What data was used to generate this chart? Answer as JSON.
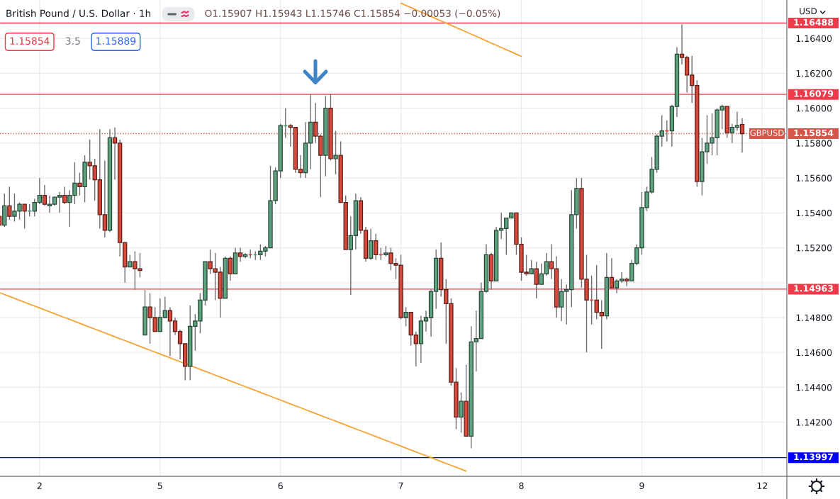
{
  "chart_data": {
    "type": "candlestick",
    "title": "British Pound / U.S. Dollar · 1h",
    "ylabel": "USD",
    "categories": [
      null,
      null,
      null,
      null,
      null,
      null,
      null,
      null,
      "2",
      null,
      null,
      null,
      null,
      null,
      null,
      null,
      null,
      null,
      null,
      null,
      null,
      null,
      null,
      null,
      null,
      null,
      null,
      null,
      null,
      null,
      null,
      null,
      "5",
      null,
      null,
      null,
      null,
      null,
      null,
      null,
      null,
      null,
      null,
      null,
      null,
      null,
      null,
      null,
      null,
      null,
      null,
      null,
      null,
      null,
      null,
      null,
      "6",
      null,
      null,
      null,
      null,
      null,
      null,
      null,
      null,
      null,
      null,
      null,
      null,
      null,
      null,
      null,
      null,
      null,
      null,
      null,
      null,
      null,
      null,
      null,
      "7",
      null,
      null,
      null,
      null,
      null,
      null,
      null,
      null,
      null,
      null,
      null,
      null,
      null,
      null,
      null,
      null,
      null,
      null,
      null,
      null,
      null,
      null,
      null,
      "8",
      null,
      null,
      null,
      null,
      null,
      null,
      null,
      null,
      null,
      null,
      null,
      null,
      null,
      null,
      null,
      null,
      null,
      null,
      null,
      null,
      null,
      null,
      null,
      "9",
      null,
      null,
      null,
      null,
      null,
      null,
      null,
      null,
      null,
      null,
      null,
      null,
      null,
      null,
      null,
      null,
      null,
      null,
      null,
      null,
      null,
      null,
      null,
      "12"
    ],
    "ohlc": [
      [
        1.1538,
        1.1539,
        1.1532,
        1.1533
      ],
      [
        1.1533,
        1.1551,
        1.1532,
        1.1544
      ],
      [
        1.1544,
        1.1555,
        1.1536,
        1.1538
      ],
      [
        1.1538,
        1.1551,
        1.1535,
        1.1541
      ],
      [
        1.1541,
        1.1546,
        1.1536,
        1.1545
      ],
      [
        1.1545,
        1.1545,
        1.1531,
        1.1541
      ],
      [
        1.1541,
        1.1545,
        1.1538,
        1.1541
      ],
      [
        1.1541,
        1.1548,
        1.1538,
        1.1546
      ],
      [
        1.1546,
        1.156,
        1.1545,
        1.155
      ],
      [
        1.155,
        1.1556,
        1.1544,
        1.1545
      ],
      [
        1.1544,
        1.155,
        1.154,
        1.1545
      ],
      [
        1.1545,
        1.1549,
        1.1544,
        1.1549
      ],
      [
        1.1549,
        1.1552,
        1.154,
        1.155
      ],
      [
        1.155,
        1.1555,
        1.1545,
        1.1546
      ],
      [
        1.1546,
        1.1553,
        1.1532,
        1.155
      ],
      [
        1.155,
        1.1569,
        1.1545,
        1.1557
      ],
      [
        1.1557,
        1.1563,
        1.155,
        1.1555
      ],
      [
        1.1555,
        1.1573,
        1.1546,
        1.1569
      ],
      [
        1.1569,
        1.1582,
        1.1559,
        1.1567
      ],
      [
        1.1567,
        1.1571,
        1.1547,
        1.1559
      ],
      [
        1.1559,
        1.1588,
        1.1531,
        1.1539
      ],
      [
        1.1539,
        1.157,
        1.1526,
        1.153
      ],
      [
        1.153,
        1.1588,
        1.1529,
        1.1583
      ],
      [
        1.1583,
        1.1589,
        1.1559,
        1.158
      ],
      [
        1.158,
        1.1582,
        1.1515,
        1.1523
      ],
      [
        1.1523,
        1.1523,
        1.15,
        1.1509
      ],
      [
        1.1509,
        1.1516,
        1.1509,
        1.1512
      ],
      [
        1.1512,
        1.1518,
        1.1496,
        1.1508
      ],
      [
        1.1508,
        1.1517,
        1.1503,
        1.1507
      ],
      [
        1.147,
        1.1496,
        1.147,
        1.1486
      ],
      [
        1.1486,
        1.1494,
        1.1465,
        1.148
      ],
      [
        1.148,
        1.1486,
        1.1472,
        1.1472
      ],
      [
        1.1472,
        1.1491,
        1.1472,
        1.148
      ],
      [
        1.148,
        1.1492,
        1.148,
        1.1484
      ],
      [
        1.1484,
        1.1486,
        1.1458,
        1.1478
      ],
      [
        1.1478,
        1.148,
        1.147,
        1.1472
      ],
      [
        1.1472,
        1.1473,
        1.1456,
        1.1465
      ],
      [
        1.1465,
        1.1465,
        1.1444,
        1.1452
      ],
      [
        1.1452,
        1.1487,
        1.1444,
        1.1475
      ],
      [
        1.1475,
        1.1482,
        1.1461,
        1.1478
      ],
      [
        1.1478,
        1.1494,
        1.1471,
        1.149
      ],
      [
        1.149,
        1.1512,
        1.1487,
        1.1512
      ],
      [
        1.1512,
        1.1519,
        1.1505,
        1.1508
      ],
      [
        1.1508,
        1.1517,
        1.149,
        1.1506
      ],
      [
        1.1506,
        1.1509,
        1.148,
        1.1491
      ],
      [
        1.1491,
        1.1515,
        1.1491,
        1.1514
      ],
      [
        1.1514,
        1.1515,
        1.1501,
        1.1505
      ],
      [
        1.1505,
        1.152,
        1.1505,
        1.1517
      ],
      [
        1.1517,
        1.152,
        1.1512,
        1.1515
      ],
      [
        1.1515,
        1.1517,
        1.1514,
        1.1516
      ],
      [
        1.1516,
        1.1519,
        1.1514,
        1.1516
      ],
      [
        1.1516,
        1.1518,
        1.1513,
        1.1516
      ],
      [
        1.1516,
        1.1522,
        1.1513,
        1.1518
      ],
      [
        1.1518,
        1.1521,
        1.1515,
        1.152
      ],
      [
        1.152,
        1.1567,
        1.152,
        1.1547
      ],
      [
        1.1547,
        1.1566,
        1.1545,
        1.1564
      ],
      [
        1.1564,
        1.1591,
        1.156,
        1.159
      ],
      [
        1.159,
        1.16,
        1.1583,
        1.159
      ],
      [
        1.159,
        1.1591,
        1.1578,
        1.1589
      ],
      [
        1.1589,
        1.1589,
        1.1563,
        1.1565
      ],
      [
        1.1565,
        1.1573,
        1.156,
        1.1563
      ],
      [
        1.1563,
        1.1592,
        1.156,
        1.158
      ],
      [
        1.158,
        1.1608,
        1.1565,
        1.1592
      ],
      [
        1.1592,
        1.1603,
        1.158,
        1.1584
      ],
      [
        1.1584,
        1.1585,
        1.1549,
        1.1573
      ],
      [
        1.1573,
        1.1607,
        1.1561,
        1.16
      ],
      [
        1.16,
        1.1608,
        1.157,
        1.1571
      ],
      [
        1.1571,
        1.1587,
        1.1562,
        1.1573
      ],
      [
        1.1573,
        1.1581,
        1.1546,
        1.1546
      ],
      [
        1.1546,
        1.155,
        1.1519,
        1.1519
      ],
      [
        1.1519,
        1.1538,
        1.1493,
        1.1527
      ],
      [
        1.1527,
        1.1551,
        1.1519,
        1.1547
      ],
      [
        1.1547,
        1.1549,
        1.1528,
        1.153
      ],
      [
        1.153,
        1.1532,
        1.1512,
        1.1514
      ],
      [
        1.1514,
        1.1531,
        1.1513,
        1.1524
      ],
      [
        1.1524,
        1.1528,
        1.1513,
        1.1516
      ],
      [
        1.1516,
        1.152,
        1.1513,
        1.1516
      ],
      [
        1.1516,
        1.1521,
        1.1515,
        1.1517
      ],
      [
        1.1517,
        1.152,
        1.1507,
        1.1511
      ],
      [
        1.1511,
        1.1514,
        1.1502,
        1.151
      ],
      [
        1.151,
        1.1516,
        1.1479,
        1.148
      ],
      [
        1.148,
        1.1486,
        1.1475,
        1.1483
      ],
      [
        1.1483,
        1.1483,
        1.1464,
        1.147
      ],
      [
        1.147,
        1.1472,
        1.1452,
        1.1465
      ],
      [
        1.1465,
        1.1481,
        1.1454,
        1.1478
      ],
      [
        1.1478,
        1.1484,
        1.1472,
        1.148
      ],
      [
        1.148,
        1.1496,
        1.1469,
        1.1495
      ],
      [
        1.1495,
        1.1519,
        1.1485,
        1.1514
      ],
      [
        1.1514,
        1.1523,
        1.1492,
        1.1496
      ],
      [
        1.1496,
        1.1502,
        1.1465,
        1.1488
      ],
      [
        1.1488,
        1.1491,
        1.1441,
        1.1443
      ],
      [
        1.1443,
        1.1451,
        1.1416,
        1.1423
      ],
      [
        1.1423,
        1.1437,
        1.1414,
        1.1432
      ],
      [
        1.1432,
        1.1453,
        1.1412,
        1.1412
      ],
      [
        1.1412,
        1.1475,
        1.1405,
        1.1466
      ],
      [
        1.1466,
        1.1484,
        1.1449,
        1.1468
      ],
      [
        1.1468,
        1.15,
        1.1468,
        1.1495
      ],
      [
        1.1495,
        1.1522,
        1.1494,
        1.1516
      ],
      [
        1.1516,
        1.1517,
        1.1496,
        1.1501
      ],
      [
        1.1501,
        1.1532,
        1.1501,
        1.153
      ],
      [
        1.153,
        1.154,
        1.1525,
        1.1531
      ],
      [
        1.1531,
        1.1537,
        1.1516,
        1.1537
      ],
      [
        1.1537,
        1.154,
        1.1537,
        1.154
      ],
      [
        1.154,
        1.154,
        1.1516,
        1.1522
      ],
      [
        1.1522,
        1.1526,
        1.1501,
        1.1506
      ],
      [
        1.1506,
        1.1516,
        1.1504,
        1.1505
      ],
      [
        1.1505,
        1.1513,
        1.1505,
        1.1508
      ],
      [
        1.1508,
        1.1512,
        1.1491,
        1.1499
      ],
      [
        1.1499,
        1.1511,
        1.1499,
        1.1505
      ],
      [
        1.1505,
        1.1517,
        1.1504,
        1.1512
      ],
      [
        1.1512,
        1.1522,
        1.1502,
        1.1508
      ],
      [
        1.1508,
        1.1515,
        1.148,
        1.1486
      ],
      [
        1.1486,
        1.1502,
        1.1478,
        1.1495
      ],
      [
        1.1495,
        1.1499,
        1.1476,
        1.1496
      ],
      [
        1.1496,
        1.1553,
        1.1486,
        1.1539
      ],
      [
        1.1539,
        1.156,
        1.1531,
        1.1554
      ],
      [
        1.1554,
        1.156,
        1.1497,
        1.1502
      ],
      [
        1.1502,
        1.1516,
        1.146,
        1.149
      ],
      [
        1.149,
        1.1504,
        1.1476,
        1.149
      ],
      [
        1.149,
        1.151,
        1.1479,
        1.1483
      ],
      [
        1.1483,
        1.149,
        1.1462,
        1.1481
      ],
      [
        1.1481,
        1.1517,
        1.1479,
        1.1503
      ],
      [
        1.1503,
        1.1514,
        1.1497,
        1.1497
      ],
      [
        1.1497,
        1.1502,
        1.1494,
        1.1501
      ],
      [
        1.1501,
        1.1506,
        1.15,
        1.1502
      ],
      [
        1.1502,
        1.1503,
        1.1498,
        1.1501
      ],
      [
        1.1501,
        1.1513,
        1.1501,
        1.1511
      ],
      [
        1.1511,
        1.1522,
        1.151,
        1.152
      ],
      [
        1.152,
        1.1552,
        1.1516,
        1.1543
      ],
      [
        1.1543,
        1.1555,
        1.1541,
        1.1552
      ],
      [
        1.1552,
        1.1572,
        1.1551,
        1.1565
      ],
      [
        1.1565,
        1.1585,
        1.1563,
        1.1584
      ],
      [
        1.1584,
        1.1596,
        1.1578,
        1.1587
      ],
      [
        1.1587,
        1.1593,
        1.1581,
        1.1587
      ],
      [
        1.1587,
        1.1602,
        1.1578,
        1.1601
      ],
      [
        1.1601,
        1.1635,
        1.1595,
        1.1631
      ],
      [
        1.1631,
        1.1648,
        1.1625,
        1.1629
      ],
      [
        1.1629,
        1.163,
        1.1609,
        1.1619
      ],
      [
        1.1619,
        1.163,
        1.1603,
        1.1613
      ],
      [
        1.1613,
        1.1616,
        1.1555,
        1.1558
      ],
      [
        1.1558,
        1.1583,
        1.155,
        1.1575
      ],
      [
        1.1575,
        1.1596,
        1.1568,
        1.158
      ],
      [
        1.158,
        1.1597,
        1.1573,
        1.1583
      ],
      [
        1.1583,
        1.16,
        1.1573,
        1.1599
      ],
      [
        1.1599,
        1.1602,
        1.1588,
        1.1601
      ],
      [
        1.1601,
        1.1601,
        1.1583,
        1.1586
      ],
      [
        1.1586,
        1.1591,
        1.158,
        1.1589
      ],
      [
        1.1589,
        1.1598,
        1.1587,
        1.159
      ],
      [
        1.15907,
        1.15943,
        1.15746,
        1.15854
      ],
      null,
      null,
      null,
      null
    ],
    "colors": [
      "#d6493b",
      "#5ea37f",
      "#d6493b",
      "#5ea37f",
      "#5ea37f",
      "#d6493b",
      "#5ea37f",
      "#5ea37f",
      "#5ea37f",
      "#d6493b",
      "#5ea37f",
      "#5ea37f",
      "#5ea37f",
      "#d6493b",
      "#5ea37f",
      "#5ea37f",
      "#d6493b",
      "#5ea37f",
      "#d6493b",
      "#d6493b",
      "#d6493b",
      "#d6493b",
      "#5ea37f",
      "#d6493b",
      "#d6493b",
      "#d6493b",
      "#5ea37f",
      "#d6493b",
      "#d6493b",
      "#5ea37f",
      "#d6493b",
      "#d6493b",
      "#5ea37f",
      "#5ea37f",
      "#d6493b",
      "#d6493b",
      "#d6493b",
      "#d6493b",
      "#5ea37f",
      "#5ea37f",
      "#5ea37f",
      "#5ea37f",
      "#d6493b",
      "#d6493b",
      "#d6493b",
      "#5ea37f",
      "#d6493b",
      "#5ea37f",
      "#d6493b",
      "#5ea37f",
      "#d6493b",
      "#5ea37f",
      "#5ea37f",
      "#5ea37f",
      "#5ea37f",
      "#5ea37f",
      "#5ea37f",
      "#5ea37f",
      "#d6493b",
      "#d6493b",
      "#d6493b",
      "#5ea37f",
      "#5ea37f",
      "#d6493b",
      "#d6493b",
      "#5ea37f",
      "#d6493b",
      "#5ea37f",
      "#d6493b",
      "#d6493b",
      "#5ea37f",
      "#5ea37f",
      "#d6493b",
      "#d6493b",
      "#5ea37f",
      "#d6493b",
      "#d6493b",
      "#5ea37f",
      "#d6493b",
      "#d6493b",
      "#d6493b",
      "#5ea37f",
      "#d6493b",
      "#d6493b",
      "#5ea37f",
      "#5ea37f",
      "#5ea37f",
      "#5ea37f",
      "#d6493b",
      "#d6493b",
      "#d6493b",
      "#d6493b",
      "#5ea37f",
      "#d6493b",
      "#5ea37f",
      "#5ea37f",
      "#5ea37f",
      "#5ea37f",
      "#d6493b",
      "#5ea37f",
      "#5ea37f",
      "#5ea37f",
      "#5ea37f",
      "#d6493b",
      "#d6493b",
      "#d6493b",
      "#5ea37f",
      "#d6493b",
      "#5ea37f",
      "#5ea37f",
      "#d6493b",
      "#d6493b",
      "#5ea37f",
      "#5ea37f",
      "#5ea37f",
      "#5ea37f",
      "#d6493b",
      "#d6493b",
      "#d6493b",
      "#d6493b",
      "#d6493b",
      "#5ea37f",
      "#d6493b",
      "#5ea37f",
      "#5ea37f",
      "#d6493b",
      "#5ea37f",
      "#5ea37f",
      "#5ea37f",
      "#5ea37f",
      "#5ea37f",
      "#5ea37f",
      "#5ea37f",
      "#d6493b",
      "#5ea37f",
      "#5ea37f",
      "#d6493b",
      "#d6493b",
      "#d6493b",
      "#d6493b",
      "#5ea37f",
      "#5ea37f",
      "#5ea37f",
      "#5ea37f",
      "#5ea37f",
      "#d6493b",
      "#5ea37f",
      "#5ea37f",
      "#d6493b",
      null,
      null,
      null,
      null
    ],
    "series": [
      {
        "type": "line",
        "color": "#f5a335",
        "values": [
          1.14943,
          1.14932,
          1.14921,
          1.1491,
          1.14899,
          1.14888,
          1.14877,
          1.14866,
          1.14855,
          1.14844,
          1.14833,
          1.14822,
          1.14811,
          1.148,
          1.14789,
          1.14778,
          1.14767,
          1.14756,
          1.14745,
          1.14734,
          1.14723,
          1.14712,
          1.14701,
          1.1469,
          1.14679,
          1.14668,
          1.14657,
          1.14646,
          1.14635,
          1.14624,
          1.14613,
          1.14602,
          1.14591,
          1.1458,
          1.14569,
          1.14558,
          1.14547,
          1.14536,
          1.14525,
          1.14514,
          1.14503,
          1.14492,
          1.14481,
          1.1447,
          1.14459,
          1.14448,
          1.14437,
          1.14426,
          1.14415,
          1.14404,
          1.14393,
          1.14382,
          1.14371,
          1.1436,
          1.14349,
          1.14338,
          1.14327,
          1.14316,
          1.14305,
          1.14294,
          1.14283,
          1.14272,
          1.14261,
          1.1425,
          1.14239,
          1.14228,
          1.14217,
          1.14206,
          1.14195,
          1.14184,
          1.14173,
          1.14162,
          1.14151,
          1.1414,
          1.14129,
          1.14118,
          1.14107,
          1.14096,
          1.14085,
          1.14074,
          1.14063,
          1.14052,
          1.14041,
          1.1403,
          1.14019,
          1.14008,
          1.13997,
          1.13986,
          1.13975,
          1.13964,
          1.13953,
          1.13942,
          1.13931,
          1.1392,
          null,
          null,
          null,
          null,
          null,
          null,
          null,
          null,
          null,
          null,
          null,
          null,
          null,
          null,
          null,
          null,
          null,
          null,
          null,
          null,
          null,
          null,
          null,
          null,
          null,
          null,
          null,
          null,
          null,
          null,
          null,
          null,
          null,
          null,
          null,
          null,
          null,
          null,
          null,
          null,
          null,
          null,
          null,
          null,
          null,
          null,
          null,
          null,
          null,
          null,
          null,
          null,
          null,
          null,
          null,
          null,
          null,
          null,
          null
        ]
      },
      {
        "type": "line",
        "color": "#f5a335",
        "values": [
          null,
          null,
          null,
          null,
          null,
          null,
          null,
          null,
          null,
          null,
          null,
          null,
          null,
          null,
          null,
          null,
          null,
          null,
          null,
          null,
          null,
          null,
          null,
          null,
          null,
          null,
          null,
          null,
          null,
          null,
          null,
          null,
          null,
          null,
          null,
          null,
          null,
          null,
          null,
          null,
          null,
          null,
          null,
          null,
          null,
          null,
          null,
          null,
          null,
          null,
          null,
          null,
          null,
          null,
          null,
          null,
          null,
          null,
          null,
          null,
          null,
          null,
          null,
          null,
          null,
          null,
          null,
          null,
          null,
          null,
          null,
          null,
          null,
          null,
          null,
          null,
          null,
          null,
          null,
          null,
          1.16602,
          1.16589,
          1.16577,
          1.16564,
          1.16551,
          1.16539,
          1.16526,
          1.16513,
          1.165,
          1.16488,
          1.16475,
          1.16462,
          1.1645,
          1.16437,
          1.16424,
          1.16412,
          1.16399,
          1.16386,
          1.16373,
          1.16361,
          1.16348,
          1.16335,
          1.16323,
          1.1631,
          1.16297,
          null,
          null,
          null,
          null,
          null,
          null,
          null,
          null,
          null,
          null,
          null,
          null,
          null,
          null,
          null,
          null,
          null,
          null,
          null,
          null,
          null,
          null,
          null,
          null,
          null,
          null,
          null,
          null,
          null,
          null,
          null,
          null,
          null,
          null,
          null,
          null,
          null,
          null,
          null,
          null,
          null,
          null,
          null,
          null,
          null,
          null,
          null,
          null
        ]
      }
    ],
    "ref_lines": [
      {
        "axis": "y",
        "value": 1.16488,
        "label": "1.16488",
        "color": "#ef3a4a"
      },
      {
        "axis": "y",
        "value": 1.16079,
        "label": "1.16079",
        "color": "#ef3a4a"
      },
      {
        "axis": "y",
        "value": 1.15854,
        "label": "1.15854",
        "color": "#d5574a",
        "line_style": "dotted"
      },
      {
        "axis": "y",
        "value": 1.14963,
        "label": "1.14963",
        "color": "#ef3a4a"
      },
      {
        "axis": "y",
        "value": 1.13997,
        "label": "1.13997",
        "color": "#0000ff"
      }
    ],
    "annotations": [
      "O1.15907 H1.15943 L1.15746 C1.15854 −0.00053 (−0.05%)",
      "1.15854",
      "3.5",
      "1.15889",
      {
        "text": "GBPUSD",
        "y": 1.15854
      }
    ],
    "ylim": [
      1.1389,
      1.1662
    ],
    "yticks": [
      {
        "value": 1.142,
        "label": "1.14200"
      },
      {
        "value": 1.144,
        "label": "1.14400"
      },
      {
        "value": 1.146,
        "label": "1.14600"
      },
      {
        "value": 1.148,
        "label": "1.14800"
      },
      {
        "value": 1.15,
        "label": null
      },
      {
        "value": 1.152,
        "label": "1.15200"
      },
      {
        "value": 1.154,
        "label": "1.15400"
      },
      {
        "value": 1.156,
        "label": "1.15600"
      },
      {
        "value": 1.158,
        "label": "1.15800"
      },
      {
        "value": 1.16,
        "label": "1.16000"
      },
      {
        "value": 1.162,
        "label": "1.16200"
      },
      {
        "value": 1.164,
        "label": "1.16400"
      }
    ],
    "grid": true
  }
}
